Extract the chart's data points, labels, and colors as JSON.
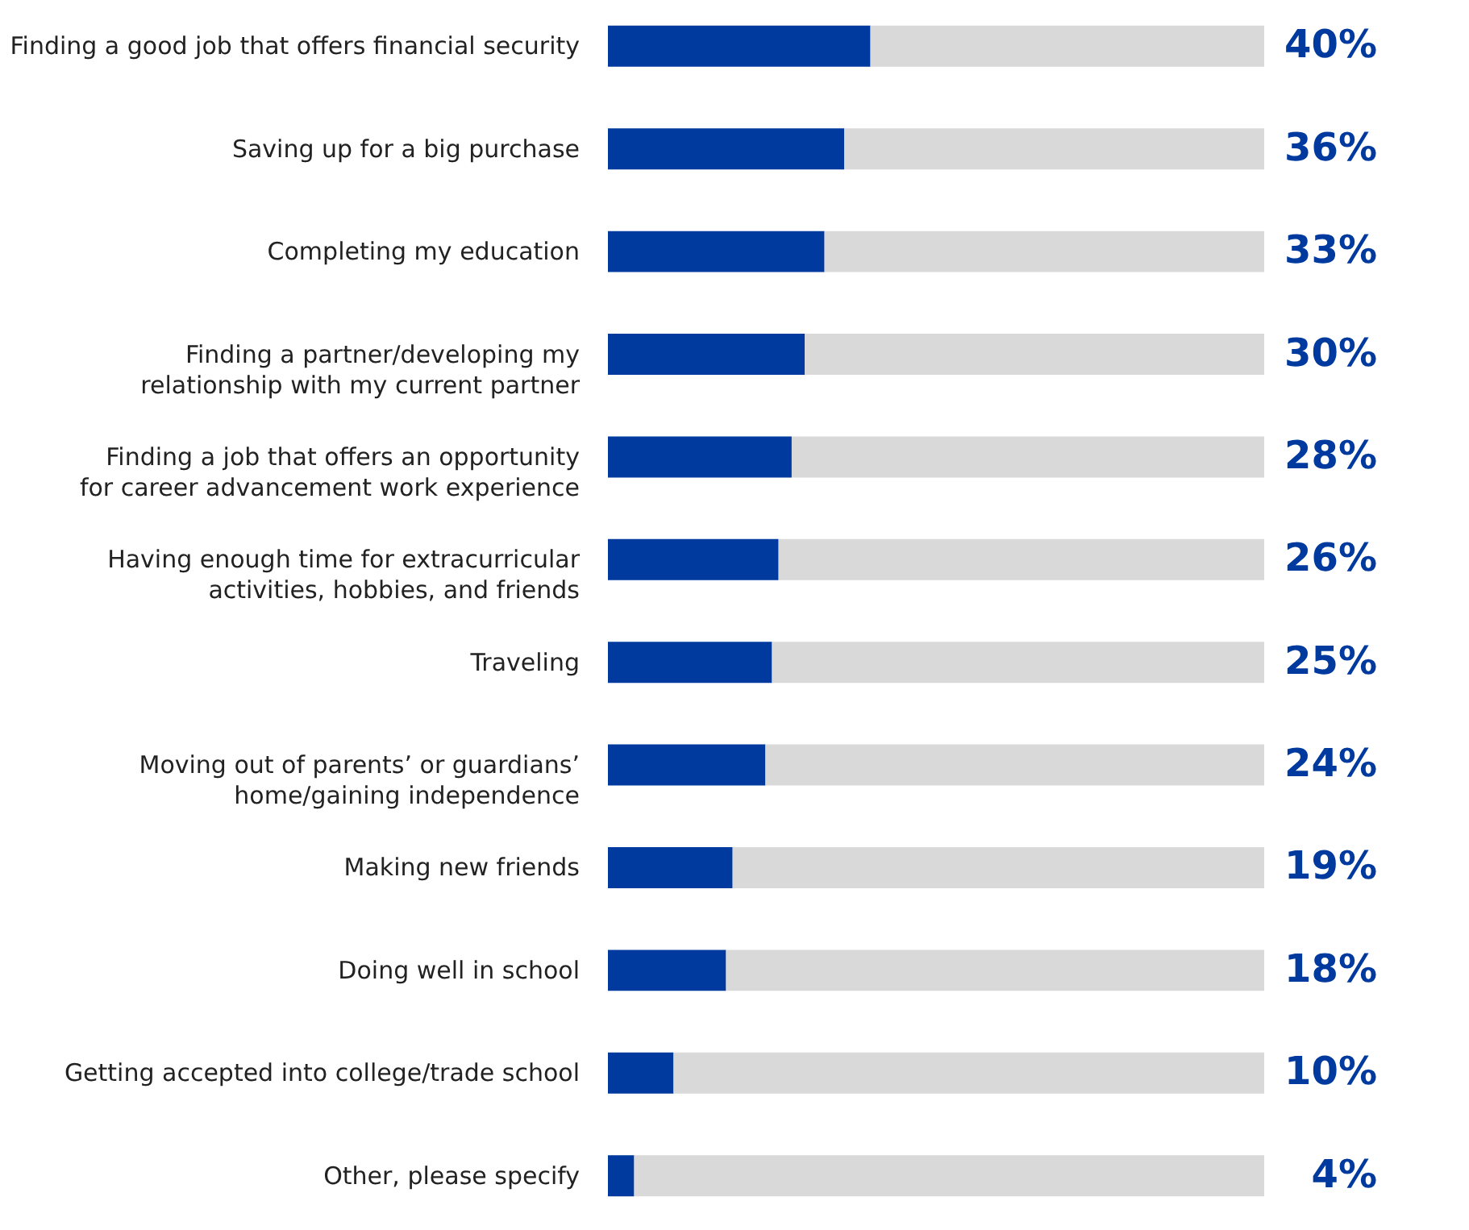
{
  "chart_data": {
    "type": "bar",
    "orientation": "horizontal",
    "stacked": true,
    "tick_labels": "y",
    "xlim": [
      0,
      100
    ],
    "categories": [
      "Finding a good job that offers financial security",
      "Saving up for a big purchase",
      "Completing my education",
      "Finding a partner/developing my\nrelationship with my current partner",
      "Finding a job that offers an opportunity\nfor career advancement work experience",
      "Having enough time for extracurricular\nactivities, hobbies, and friends",
      "Traveling",
      "Moving out of parents’ or guardians’\nhome/gaining independence",
      "Making new friends",
      "Doing well in school",
      "Getting accepted into college/trade school",
      "Other, please specify"
    ],
    "series": [
      {
        "color": "#003a9e",
        "values": [
          40,
          36,
          33,
          30,
          28,
          26,
          25,
          24,
          19,
          18,
          10,
          4
        ],
        "value_labels": [
          "40%",
          "36%",
          "33%",
          "30%",
          "28%",
          "26%",
          "25%",
          "24%",
          "19%",
          "18%",
          "10%",
          "4%"
        ]
      },
      {
        "color": "#d9d9d9",
        "values": [
          60,
          64,
          67,
          70,
          72,
          74,
          75,
          76,
          81,
          82,
          90,
          96
        ]
      }
    ]
  }
}
